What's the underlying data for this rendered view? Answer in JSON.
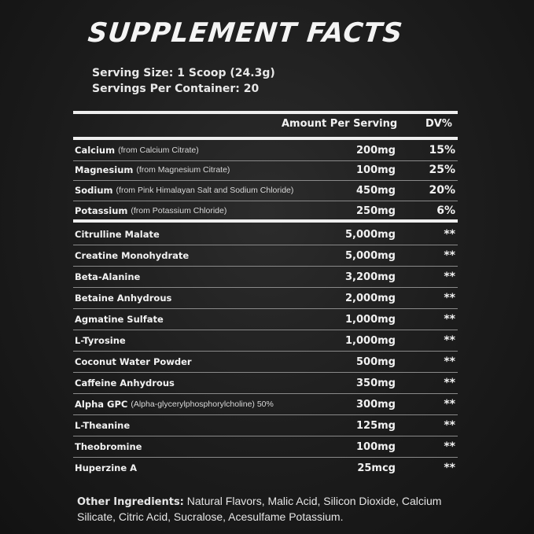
{
  "title": "SUPPLEMENT FACTS",
  "serving_size": "Serving Size: 1 Scoop (24.3g)",
  "servings_per_container": "Servings Per Container: 20",
  "header": {
    "amount": "Amount Per Serving",
    "dv": "DV%"
  },
  "minerals": [
    {
      "name": "Calcium",
      "source": "(from Calcium Citrate)",
      "amount": "200mg",
      "dv": "15%"
    },
    {
      "name": "Magnesium",
      "source": "(from Magnesium Citrate)",
      "amount": "100mg",
      "dv": "25%"
    },
    {
      "name": "Sodium",
      "source": "(from Pink Himalayan Salt and Sodium Chloride)",
      "amount": "450mg",
      "dv": "20%"
    },
    {
      "name": "Potassium",
      "source": "(from Potassium Chloride)",
      "amount": "250mg",
      "dv": "6%"
    }
  ],
  "ingredients": [
    {
      "name": "Citrulline Malate",
      "source": "",
      "amount": "5,000mg",
      "dv": "**"
    },
    {
      "name": "Creatine Monohydrate",
      "source": "",
      "amount": "5,000mg",
      "dv": "**"
    },
    {
      "name": "Beta-Alanine",
      "source": "",
      "amount": "3,200mg",
      "dv": "**"
    },
    {
      "name": "Betaine Anhydrous",
      "source": "",
      "amount": "2,000mg",
      "dv": "**"
    },
    {
      "name": "Agmatine Sulfate",
      "source": "",
      "amount": "1,000mg",
      "dv": "**"
    },
    {
      "name": "L-Tyrosine",
      "source": "",
      "amount": "1,000mg",
      "dv": "**"
    },
    {
      "name": "Coconut Water Powder",
      "source": "",
      "amount": "500mg",
      "dv": "**"
    },
    {
      "name": "Caffeine Anhydrous",
      "source": "",
      "amount": "350mg",
      "dv": "**"
    },
    {
      "name": "Alpha GPC",
      "source": "(Alpha-glycerylphosphorylcholine) 50%",
      "amount": "300mg",
      "dv": "**"
    },
    {
      "name": "L-Theanine",
      "source": "",
      "amount": "125mg",
      "dv": "**"
    },
    {
      "name": "Theobromine",
      "source": "",
      "amount": "100mg",
      "dv": "**"
    },
    {
      "name": "Huperzine A",
      "source": "",
      "amount": "25mcg",
      "dv": "**"
    }
  ],
  "other_ingredients": {
    "label": "Other Ingredients:",
    "text": "Natural Flavors, Malic Acid, Silicon Dioxide, Calcium Silicate, Citric Acid, Sucralose, Acesulfame Potassium."
  }
}
